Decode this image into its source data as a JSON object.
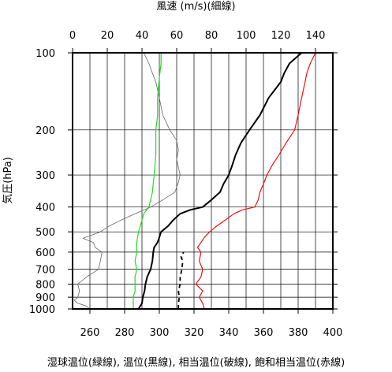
{
  "chart_data": {
    "type": "line",
    "top_axis_title": "風速 (m/s)(細線)",
    "bottom_axis_title": "湿球温位(緑線), 温位(黒線), 相当温位(破線), 飽和相当温位(赤線)",
    "ylabel": "気圧(hPa)",
    "y_scale": "log",
    "y_reversed": true,
    "ylim": [
      100,
      1000
    ],
    "y_ticks": [
      100,
      200,
      300,
      400,
      500,
      600,
      700,
      800,
      900,
      1000
    ],
    "x_bottom_lim": [
      250,
      400
    ],
    "x_bottom_ticks": [
      260,
      280,
      300,
      320,
      340,
      360,
      380,
      400
    ],
    "x_top_lim": [
      0,
      150
    ],
    "x_top_ticks": [
      0,
      20,
      40,
      60,
      80,
      100,
      120,
      140
    ],
    "grid": true,
    "series": [
      {
        "key": "wind_speed",
        "axis": "top",
        "color": "#666666",
        "style": "thin",
        "points": [
          {
            "p": 1000,
            "v": 10
          },
          {
            "p": 975,
            "v": 8
          },
          {
            "p": 950,
            "v": 3
          },
          {
            "p": 925,
            "v": 1
          },
          {
            "p": 900,
            "v": 3
          },
          {
            "p": 850,
            "v": 4
          },
          {
            "p": 800,
            "v": 3
          },
          {
            "p": 750,
            "v": 8
          },
          {
            "p": 700,
            "v": 15
          },
          {
            "p": 650,
            "v": 16
          },
          {
            "p": 600,
            "v": 17
          },
          {
            "p": 575,
            "v": 13
          },
          {
            "p": 550,
            "v": 12
          },
          {
            "p": 530,
            "v": 6
          },
          {
            "p": 500,
            "v": 16
          },
          {
            "p": 475,
            "v": 21
          },
          {
            "p": 450,
            "v": 28
          },
          {
            "p": 425,
            "v": 36
          },
          {
            "p": 400,
            "v": 45
          },
          {
            "p": 375,
            "v": 52
          },
          {
            "p": 350,
            "v": 59
          },
          {
            "p": 320,
            "v": 61
          },
          {
            "p": 300,
            "v": 62
          },
          {
            "p": 280,
            "v": 61
          },
          {
            "p": 260,
            "v": 60
          },
          {
            "p": 240,
            "v": 61
          },
          {
            "p": 220,
            "v": 60
          },
          {
            "p": 200,
            "v": 56
          },
          {
            "p": 175,
            "v": 52
          },
          {
            "p": 150,
            "v": 50
          },
          {
            "p": 130,
            "v": 48
          },
          {
            "p": 120,
            "v": 46
          },
          {
            "p": 110,
            "v": 44
          },
          {
            "p": 100,
            "v": 41
          }
        ]
      },
      {
        "key": "wet_bulb_potential_temperature",
        "axis": "bottom",
        "color": "#22dd22",
        "style": "medium",
        "points": [
          {
            "p": 1000,
            "t": 285
          },
          {
            "p": 950,
            "t": 285
          },
          {
            "p": 900,
            "t": 285
          },
          {
            "p": 850,
            "t": 286
          },
          {
            "p": 800,
            "t": 286
          },
          {
            "p": 750,
            "t": 286
          },
          {
            "p": 700,
            "t": 287
          },
          {
            "p": 650,
            "t": 286
          },
          {
            "p": 600,
            "t": 287
          },
          {
            "p": 550,
            "t": 287
          },
          {
            "p": 500,
            "t": 288
          },
          {
            "p": 475,
            "t": 289
          },
          {
            "p": 450,
            "t": 290
          },
          {
            "p": 425,
            "t": 291
          },
          {
            "p": 400,
            "t": 294
          },
          {
            "p": 375,
            "t": 295
          },
          {
            "p": 350,
            "t": 296
          },
          {
            "p": 300,
            "t": 297
          },
          {
            "p": 250,
            "t": 298
          },
          {
            "p": 200,
            "t": 298
          },
          {
            "p": 175,
            "t": 299
          },
          {
            "p": 150,
            "t": 299
          },
          {
            "p": 125,
            "t": 300
          },
          {
            "p": 110,
            "t": 301
          },
          {
            "p": 100,
            "t": 301
          }
        ]
      },
      {
        "key": "potential_temperature",
        "axis": "bottom",
        "color": "#000000",
        "style": "thick",
        "points": [
          {
            "p": 1000,
            "t": 288
          },
          {
            "p": 975,
            "t": 289
          },
          {
            "p": 950,
            "t": 290
          },
          {
            "p": 900,
            "t": 290.5
          },
          {
            "p": 850,
            "t": 291.5
          },
          {
            "p": 800,
            "t": 292
          },
          {
            "p": 750,
            "t": 293
          },
          {
            "p": 700,
            "t": 295
          },
          {
            "p": 650,
            "t": 296
          },
          {
            "p": 600,
            "t": 296.5
          },
          {
            "p": 575,
            "t": 297
          },
          {
            "p": 550,
            "t": 299
          },
          {
            "p": 525,
            "t": 300
          },
          {
            "p": 500,
            "t": 301
          },
          {
            "p": 475,
            "t": 305
          },
          {
            "p": 450,
            "t": 308
          },
          {
            "p": 425,
            "t": 312
          },
          {
            "p": 410,
            "t": 318
          },
          {
            "p": 400,
            "t": 325
          },
          {
            "p": 375,
            "t": 330
          },
          {
            "p": 350,
            "t": 335
          },
          {
            "p": 325,
            "t": 337
          },
          {
            "p": 300,
            "t": 340
          },
          {
            "p": 275,
            "t": 342
          },
          {
            "p": 250,
            "t": 344
          },
          {
            "p": 225,
            "t": 347
          },
          {
            "p": 200,
            "t": 352
          },
          {
            "p": 175,
            "t": 358
          },
          {
            "p": 150,
            "t": 363
          },
          {
            "p": 130,
            "t": 370
          },
          {
            "p": 120,
            "t": 372
          },
          {
            "p": 110,
            "t": 375
          },
          {
            "p": 100,
            "t": 382
          }
        ]
      },
      {
        "key": "equivalent_potential_temperature",
        "axis": "bottom",
        "color": "#000000",
        "style": "dashed",
        "points": [
          {
            "p": 1000,
            "t": 311
          },
          {
            "p": 950,
            "t": 311
          },
          {
            "p": 900,
            "t": 311.5
          },
          {
            "p": 850,
            "t": 311
          },
          {
            "p": 800,
            "t": 312
          },
          {
            "p": 750,
            "t": 312
          },
          {
            "p": 700,
            "t": 313
          },
          {
            "p": 650,
            "t": 313.5
          },
          {
            "p": 625,
            "t": 312.5
          },
          {
            "p": 600,
            "t": 314
          }
        ]
      },
      {
        "key": "saturated_equivalent_potential_temperature",
        "axis": "bottom",
        "color": "#ee1111",
        "style": "medium",
        "points": [
          {
            "p": 1000,
            "t": 326
          },
          {
            "p": 950,
            "t": 325
          },
          {
            "p": 900,
            "t": 323
          },
          {
            "p": 850,
            "t": 325
          },
          {
            "p": 800,
            "t": 321
          },
          {
            "p": 750,
            "t": 324
          },
          {
            "p": 700,
            "t": 325
          },
          {
            "p": 650,
            "t": 323
          },
          {
            "p": 600,
            "t": 324
          },
          {
            "p": 575,
            "t": 322
          },
          {
            "p": 550,
            "t": 324
          },
          {
            "p": 525,
            "t": 326
          },
          {
            "p": 500,
            "t": 329
          },
          {
            "p": 475,
            "t": 333
          },
          {
            "p": 450,
            "t": 338
          },
          {
            "p": 425,
            "t": 343
          },
          {
            "p": 410,
            "t": 348
          },
          {
            "p": 400,
            "t": 355
          },
          {
            "p": 375,
            "t": 357
          },
          {
            "p": 350,
            "t": 358
          },
          {
            "p": 325,
            "t": 360
          },
          {
            "p": 300,
            "t": 362
          },
          {
            "p": 275,
            "t": 365
          },
          {
            "p": 250,
            "t": 369
          },
          {
            "p": 225,
            "t": 373
          },
          {
            "p": 200,
            "t": 378
          },
          {
            "p": 175,
            "t": 380
          },
          {
            "p": 150,
            "t": 382
          },
          {
            "p": 130,
            "t": 384
          },
          {
            "p": 120,
            "t": 385
          },
          {
            "p": 110,
            "t": 387
          },
          {
            "p": 100,
            "t": 390
          }
        ]
      }
    ]
  }
}
